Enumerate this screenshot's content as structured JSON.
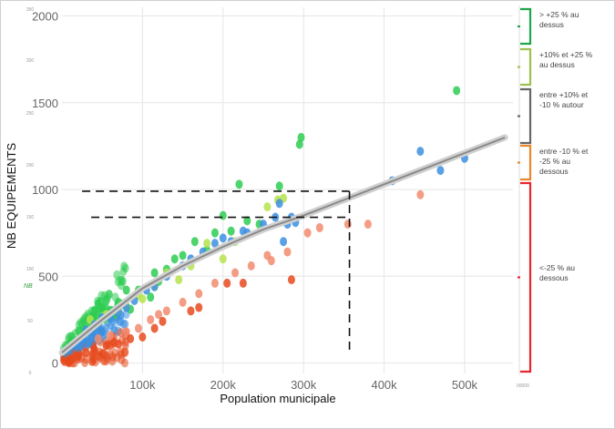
{
  "chart_data": {
    "type": "scatter",
    "title": "",
    "xlabel": "Population municipale",
    "ylabel": "NB EQUIPEMENTS",
    "xlim": [
      0,
      560000
    ],
    "ylim": [
      -60,
      2050
    ],
    "x_ticks": [
      {
        "value": 100000,
        "label": "100k"
      },
      {
        "value": 200000,
        "label": "200k"
      },
      {
        "value": 300000,
        "label": "300k"
      },
      {
        "value": 400000,
        "label": "400k"
      },
      {
        "value": 500000,
        "label": "500k"
      }
    ],
    "y_ticks": [
      {
        "value": 0,
        "label": "0"
      },
      {
        "value": 500,
        "label": "500"
      },
      {
        "value": 1000,
        "label": "1000"
      },
      {
        "value": 1500,
        "label": "1500"
      },
      {
        "value": 2000,
        "label": "2000"
      }
    ],
    "ghost_ticks": {
      "values": [
        "350",
        "300",
        "250",
        "200",
        "150",
        "100",
        "50",
        "0"
      ],
      "side_label": "NB",
      "corner_label": "00000"
    },
    "grid": true,
    "legend_position": "right",
    "series": [
      {
        "name": "> +25 % au dessus",
        "color": "#2ecc52",
        "points": [
          [
            40000,
            300
          ],
          [
            45000,
            340
          ],
          [
            50000,
            320
          ],
          [
            55000,
            360
          ],
          [
            60000,
            300
          ],
          [
            65000,
            280
          ],
          [
            70000,
            350
          ],
          [
            75000,
            340
          ],
          [
            80000,
            420
          ],
          [
            85000,
            310
          ],
          [
            95000,
            420
          ],
          [
            110000,
            380
          ],
          [
            115000,
            520
          ],
          [
            120000,
            470
          ],
          [
            130000,
            540
          ],
          [
            140000,
            600
          ],
          [
            150000,
            620
          ],
          [
            165000,
            700
          ],
          [
            180000,
            650
          ],
          [
            190000,
            750
          ],
          [
            200000,
            850
          ],
          [
            210000,
            760
          ],
          [
            220000,
            1030
          ],
          [
            230000,
            820
          ],
          [
            245000,
            800
          ],
          [
            270000,
            1020
          ],
          [
            295000,
            1260
          ],
          [
            297000,
            1300
          ],
          [
            490000,
            1570
          ]
        ]
      },
      {
        "name": "+10% et +25 % au dessus",
        "color": "#b5e34e",
        "points": [
          [
            35000,
            250
          ],
          [
            55000,
            280
          ],
          [
            70000,
            300
          ],
          [
            80000,
            330
          ],
          [
            95000,
            390
          ],
          [
            100000,
            370
          ],
          [
            115000,
            440
          ],
          [
            130000,
            520
          ],
          [
            145000,
            480
          ],
          [
            160000,
            560
          ],
          [
            180000,
            690
          ],
          [
            200000,
            600
          ],
          [
            215000,
            700
          ],
          [
            255000,
            900
          ],
          [
            268000,
            940
          ],
          [
            275000,
            950
          ]
        ]
      },
      {
        "name": "entre +10% et -10 % autour",
        "color": "#3d8fe0",
        "points": [
          [
            30000,
            190
          ],
          [
            40000,
            220
          ],
          [
            50000,
            260
          ],
          [
            60000,
            260
          ],
          [
            70000,
            290
          ],
          [
            80000,
            320
          ],
          [
            90000,
            360
          ],
          [
            105000,
            420
          ],
          [
            115000,
            440
          ],
          [
            130000,
            500
          ],
          [
            150000,
            560
          ],
          [
            160000,
            600
          ],
          [
            175000,
            640
          ],
          [
            190000,
            690
          ],
          [
            200000,
            720
          ],
          [
            210000,
            700
          ],
          [
            225000,
            760
          ],
          [
            230000,
            750
          ],
          [
            250000,
            800
          ],
          [
            265000,
            840
          ],
          [
            270000,
            920
          ],
          [
            275000,
            700
          ],
          [
            280000,
            800
          ],
          [
            290000,
            810
          ],
          [
            285000,
            840
          ],
          [
            410000,
            1050
          ],
          [
            445000,
            1220
          ],
          [
            470000,
            1110
          ],
          [
            500000,
            1180
          ]
        ]
      },
      {
        "name": "entre -10 % et -25 % au dessous",
        "color": "#f28b6e",
        "points": [
          [
            45000,
            140
          ],
          [
            60000,
            160
          ],
          [
            80000,
            180
          ],
          [
            95000,
            200
          ],
          [
            110000,
            250
          ],
          [
            120000,
            280
          ],
          [
            130000,
            300
          ],
          [
            150000,
            350
          ],
          [
            170000,
            400
          ],
          [
            190000,
            460
          ],
          [
            215000,
            520
          ],
          [
            235000,
            560
          ],
          [
            255000,
            620
          ],
          [
            260000,
            590
          ],
          [
            280000,
            640
          ],
          [
            305000,
            750
          ],
          [
            320000,
            780
          ],
          [
            355000,
            800
          ],
          [
            380000,
            800
          ],
          [
            445000,
            970
          ]
        ]
      },
      {
        "name": "<-25 % au dessous",
        "color": "#e64a1e",
        "points": [
          [
            20000,
            40
          ],
          [
            30000,
            60
          ],
          [
            40000,
            80
          ],
          [
            55000,
            100
          ],
          [
            70000,
            110
          ],
          [
            85000,
            140
          ],
          [
            100000,
            150
          ],
          [
            115000,
            200
          ],
          [
            125000,
            240
          ],
          [
            160000,
            300
          ],
          [
            170000,
            320
          ],
          [
            205000,
            460
          ],
          [
            225000,
            460
          ],
          [
            285000,
            480
          ]
        ]
      }
    ],
    "trend_line": [
      [
        0,
        60
      ],
      [
        50000,
        250
      ],
      [
        100000,
        430
      ],
      [
        150000,
        560
      ],
      [
        200000,
        670
      ],
      [
        250000,
        770
      ],
      [
        300000,
        850
      ],
      [
        350000,
        940
      ],
      [
        400000,
        1030
      ],
      [
        450000,
        1120
      ],
      [
        500000,
        1210
      ],
      [
        550000,
        1300
      ]
    ],
    "reference_lines": {
      "h_upper": 990,
      "h_lower": 840,
      "h_start_x": 25000,
      "v_x": 357000
    },
    "legend_groups": [
      {
        "lines": [
          "> +25 % au",
          "dessus"
        ],
        "color": "#1fa64a",
        "top": 10,
        "bottom": 48
      },
      {
        "lines": [
          "+10% et +25 %",
          "au dessus"
        ],
        "color": "#9fbf4e",
        "top": 54,
        "bottom": 93
      },
      {
        "lines": [
          "entre +10% et",
          "-10 % autour"
        ],
        "color": "#666666",
        "top": 98,
        "bottom": 157
      },
      {
        "lines": [
          "entre -10 % et",
          "-25 % au",
          "dessous"
        ],
        "color": "#e8872e",
        "top": 160,
        "bottom": 197
      },
      {
        "lines": [
          "<-25 % au",
          "dessous"
        ],
        "color": "#e8262e",
        "top": 201,
        "bottom": 408
      }
    ]
  }
}
